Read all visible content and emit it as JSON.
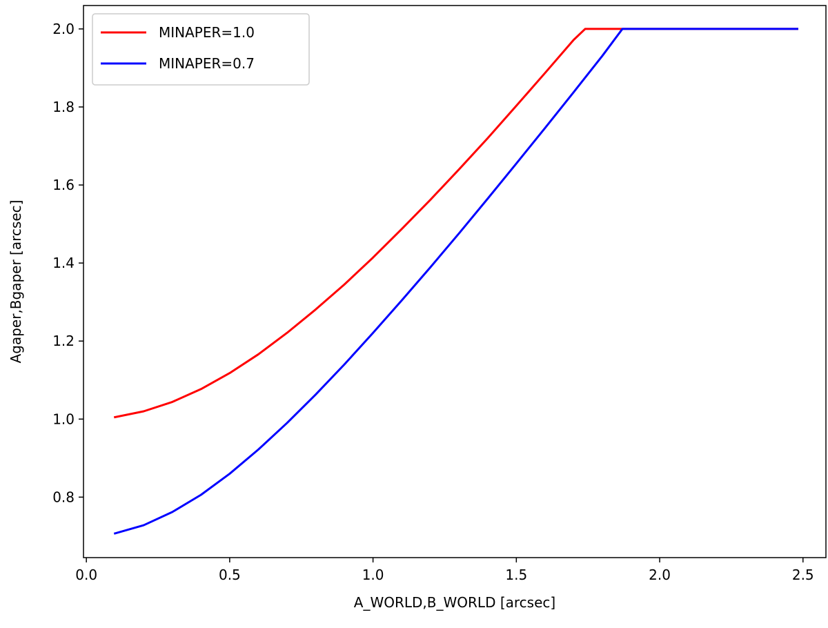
{
  "chart_data": {
    "type": "line",
    "xlabel": "A_WORLD,B_WORLD [arcsec]",
    "ylabel": "Agaper,Bgaper [arcsec]",
    "xlim": [
      -0.01,
      2.58
    ],
    "ylim": [
      0.645,
      2.06
    ],
    "xticks": [
      0.0,
      0.5,
      1.0,
      1.5,
      2.0,
      2.5
    ],
    "xtick_labels": [
      "0.0",
      "0.5",
      "1.0",
      "1.5",
      "2.0",
      "2.5"
    ],
    "yticks": [
      0.8,
      1.0,
      1.2,
      1.4,
      1.6,
      1.8,
      2.0
    ],
    "ytick_labels": [
      "0.8",
      "1.0",
      "1.2",
      "1.4",
      "1.6",
      "1.8",
      "2.0"
    ],
    "grid": false,
    "legend_position": "top-left",
    "series": [
      {
        "name": "MINAPER=1.0",
        "color": "#ff0000",
        "x": [
          0.1,
          0.2,
          0.3,
          0.4,
          0.5,
          0.6,
          0.7,
          0.8,
          0.9,
          1.0,
          1.1,
          1.2,
          1.3,
          1.4,
          1.5,
          1.6,
          1.7,
          1.74,
          1.8,
          1.9,
          2.0,
          2.1,
          2.2,
          2.3,
          2.4,
          2.48
        ],
        "y": [
          1.005,
          1.02,
          1.044,
          1.077,
          1.118,
          1.166,
          1.221,
          1.281,
          1.345,
          1.414,
          1.487,
          1.562,
          1.64,
          1.72,
          1.803,
          1.887,
          1.972,
          2.0,
          2.0,
          2.0,
          2.0,
          2.0,
          2.0,
          2.0,
          2.0,
          2.0
        ]
      },
      {
        "name": "MINAPER=0.7",
        "color": "#0000ff",
        "x": [
          0.1,
          0.2,
          0.3,
          0.4,
          0.5,
          0.6,
          0.7,
          0.8,
          0.9,
          1.0,
          1.1,
          1.2,
          1.3,
          1.4,
          1.5,
          1.6,
          1.7,
          1.8,
          1.87,
          1.9,
          2.0,
          2.1,
          2.2,
          2.3,
          2.4,
          2.48
        ],
        "y": [
          0.707,
          0.728,
          0.762,
          0.806,
          0.86,
          0.922,
          0.99,
          1.063,
          1.14,
          1.221,
          1.304,
          1.389,
          1.476,
          1.565,
          1.655,
          1.746,
          1.838,
          1.931,
          2.0,
          2.0,
          2.0,
          2.0,
          2.0,
          2.0,
          2.0,
          2.0
        ]
      }
    ]
  }
}
